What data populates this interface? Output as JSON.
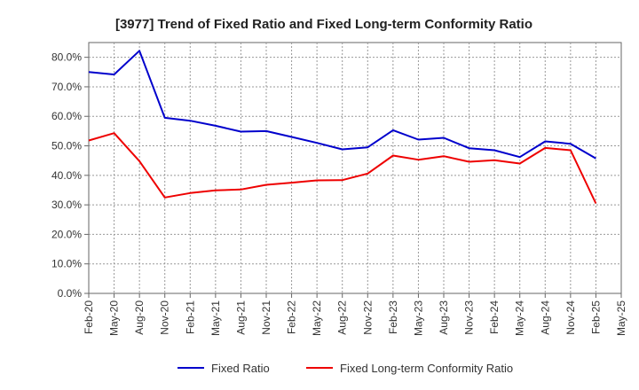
{
  "chart_data": {
    "type": "line",
    "title": "[3977]  Trend of Fixed Ratio and Fixed Long-term Conformity Ratio",
    "xlabel": "",
    "ylabel": "",
    "categories": [
      "Feb-20",
      "May-20",
      "Aug-20",
      "Nov-20",
      "Feb-21",
      "May-21",
      "Aug-21",
      "Nov-21",
      "Feb-22",
      "May-22",
      "Aug-22",
      "Nov-22",
      "Feb-23",
      "May-23",
      "Aug-23",
      "Nov-23",
      "Feb-24",
      "May-24",
      "Aug-24",
      "Nov-24",
      "Feb-25",
      "May-25"
    ],
    "y_ticks": [
      "0.0%",
      "10.0%",
      "20.0%",
      "30.0%",
      "40.0%",
      "50.0%",
      "60.0%",
      "70.0%",
      "80.0%"
    ],
    "ylim": [
      0,
      85
    ],
    "grid": true,
    "legend_position": "bottom",
    "series": [
      {
        "name": "Fixed Ratio",
        "color": "#0000cc",
        "values": [
          75.0,
          74.2,
          82.2,
          59.5,
          58.5,
          56.8,
          54.8,
          55.0,
          53.0,
          51.0,
          48.8,
          49.5,
          55.3,
          52.1,
          52.7,
          49.2,
          48.5,
          46.2,
          51.5,
          50.7,
          45.7,
          null
        ]
      },
      {
        "name": "Fixed Long-term Conformity Ratio",
        "color": "#ee0000",
        "values": [
          51.8,
          54.3,
          44.8,
          32.5,
          34.0,
          34.9,
          35.2,
          36.8,
          37.5,
          38.3,
          38.4,
          40.6,
          46.7,
          45.3,
          46.5,
          44.6,
          45.1,
          44.0,
          49.3,
          48.5,
          30.5,
          null
        ]
      }
    ]
  }
}
